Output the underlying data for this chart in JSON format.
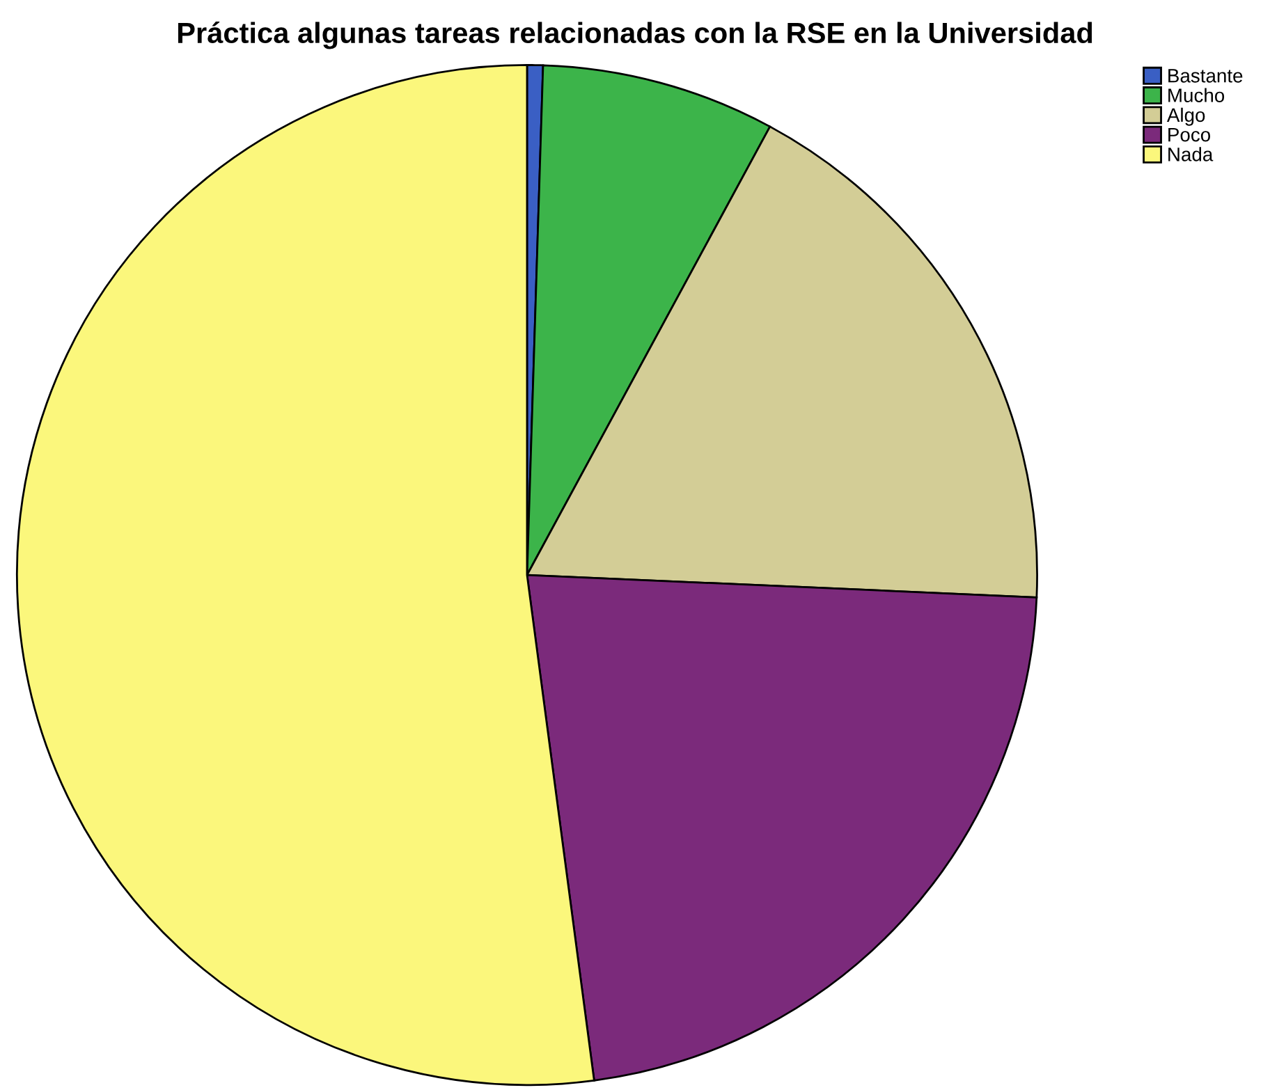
{
  "chart_data": {
    "type": "pie",
    "title": "Práctica algunas tareas relacionadas con la RSE en la Universidad",
    "categories": [
      "Bastante",
      "Mucho",
      "Algo",
      "Poco",
      "Nada"
    ],
    "values": [
      0.5,
      7.4,
      17.8,
      22.2,
      52.1
    ],
    "colors": [
      "#3a5fc4",
      "#3cb44a",
      "#d3cd96",
      "#7b2a7b",
      "#fbf77c"
    ],
    "legend": "top right"
  }
}
